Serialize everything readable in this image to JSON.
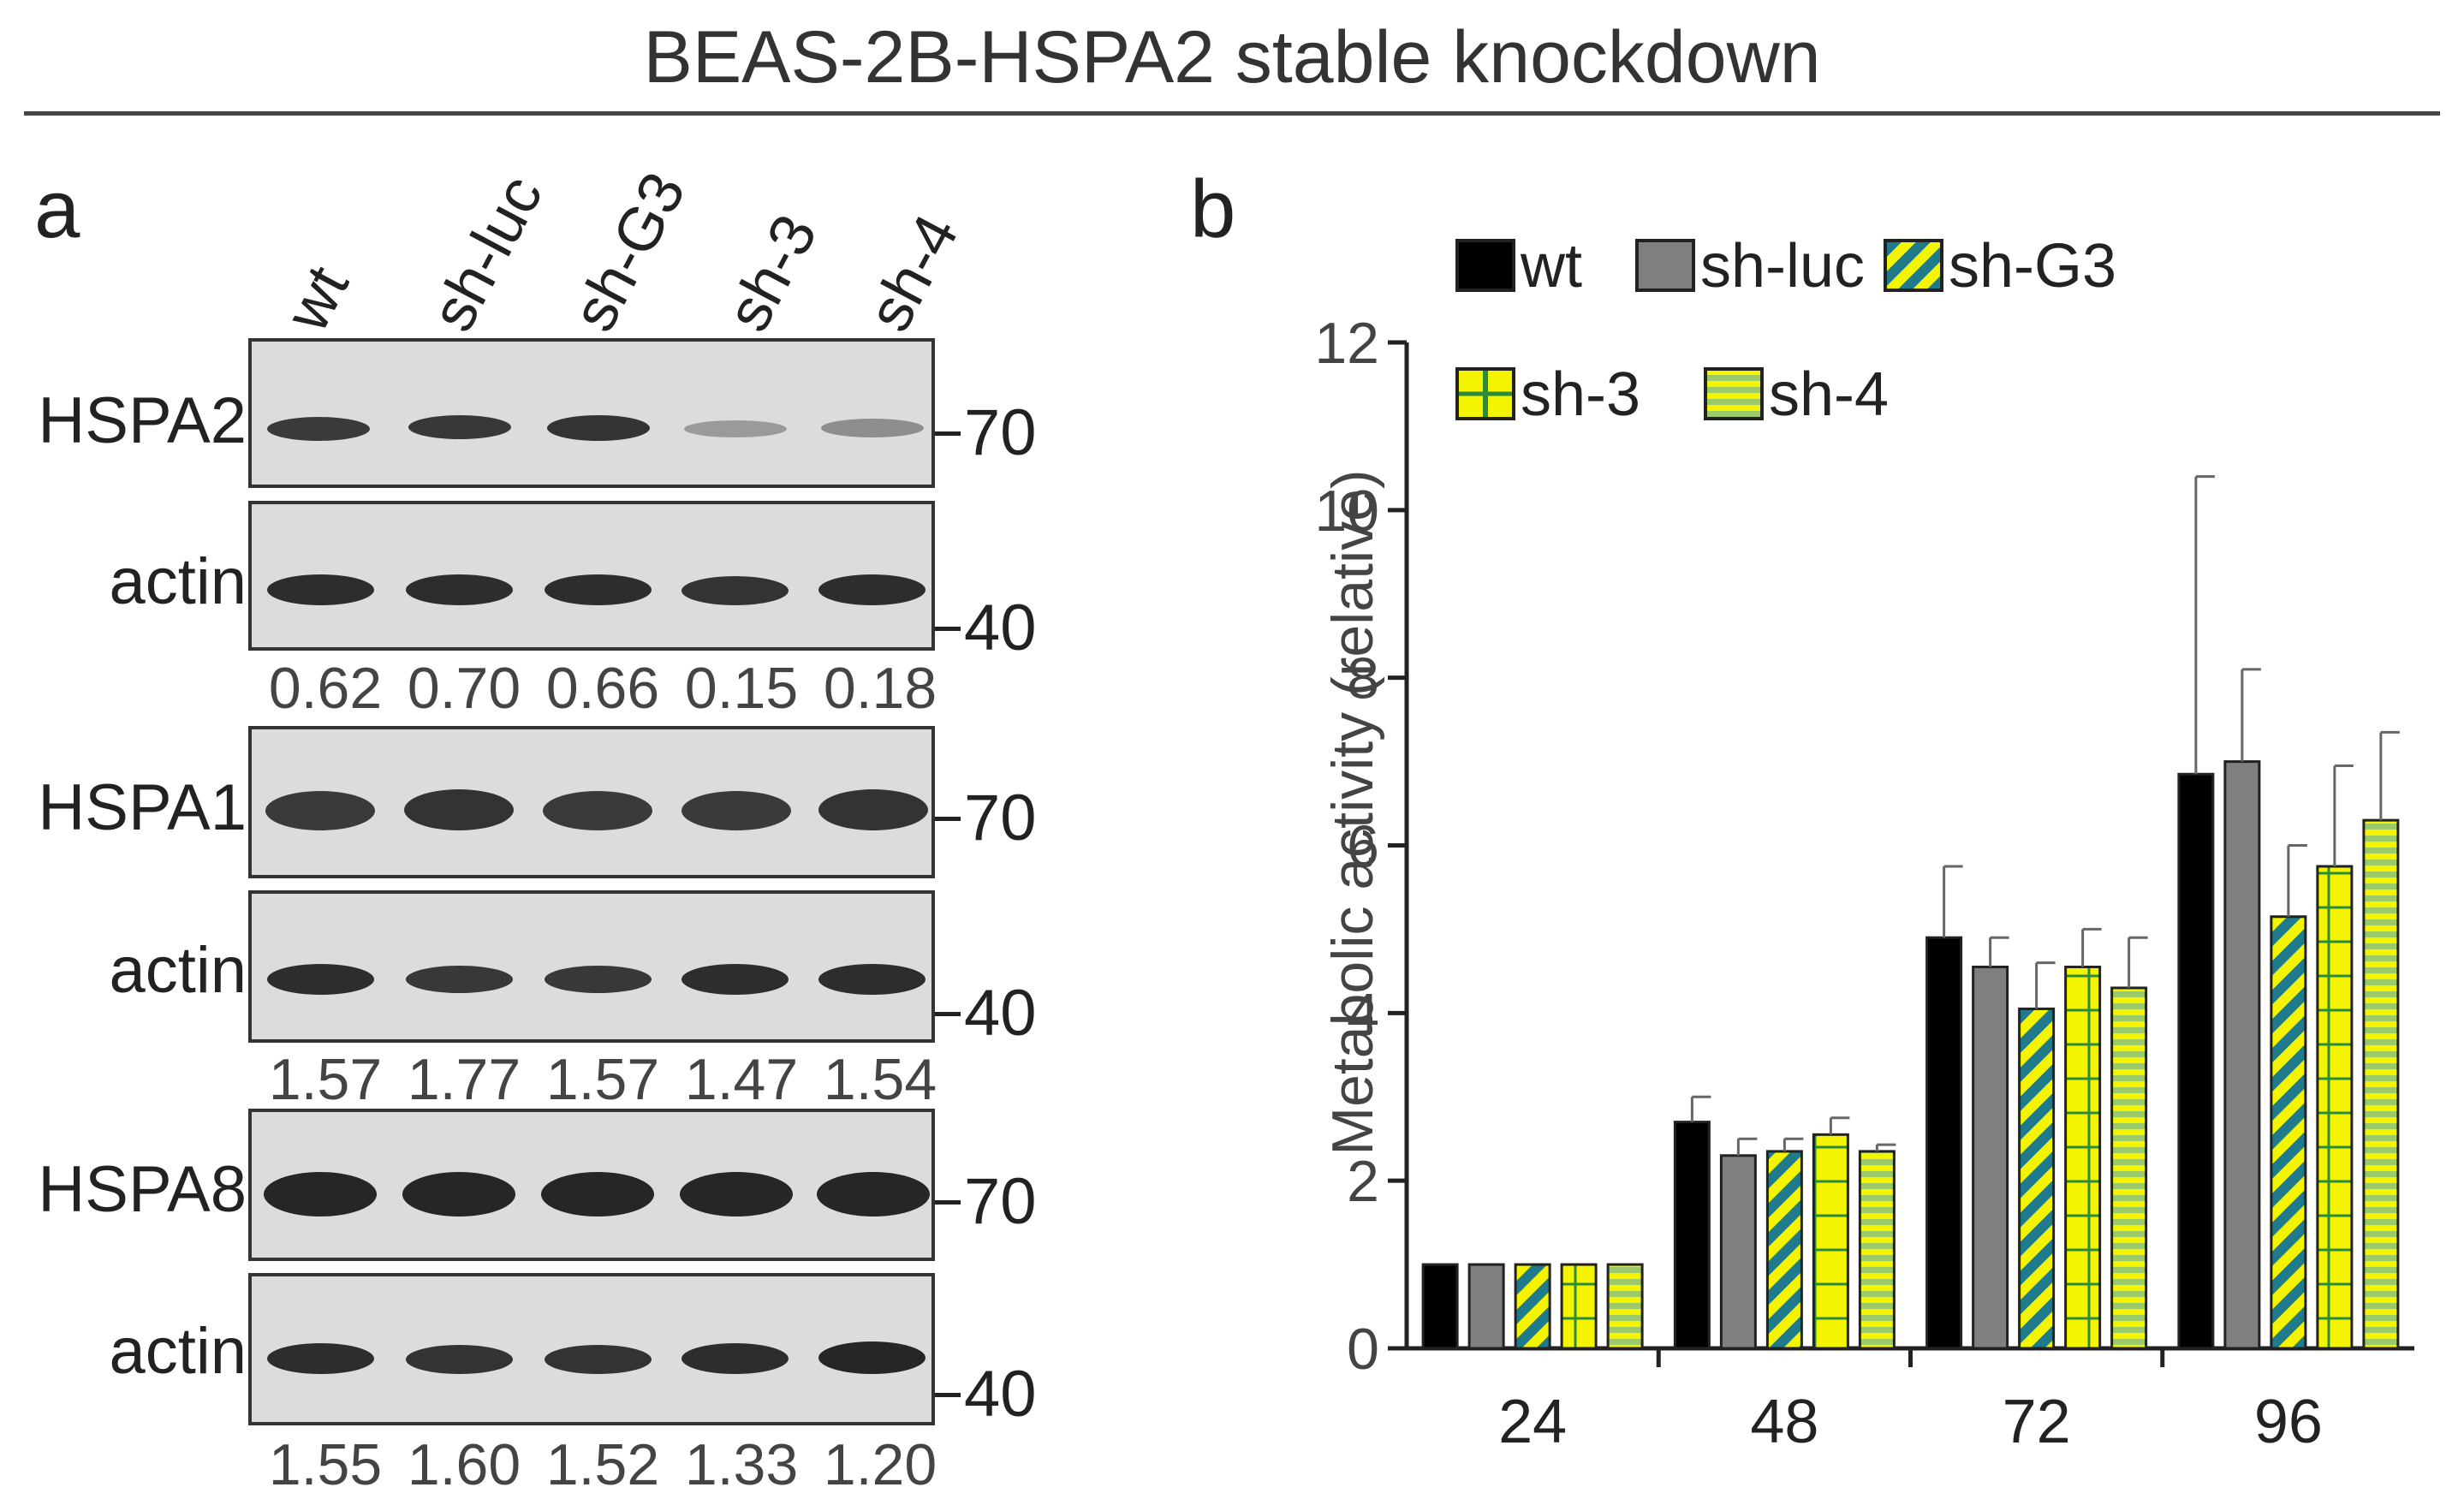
{
  "figure": {
    "title": "BEAS-2B-HSPA2 stable knockdown",
    "panel_a_label": "a",
    "panel_b_label": "b"
  },
  "blot": {
    "lanes": [
      "wt",
      "sh-luc",
      "sh-G3",
      "sh-3",
      "sh-4"
    ],
    "groups": [
      {
        "protein": "HSPA2",
        "loading": "actin",
        "protein_mw": "70",
        "loading_mw": "40",
        "ratios": [
          "0.62",
          "0.70",
          "0.66",
          "0.15",
          "0.18"
        ]
      },
      {
        "protein": "HSPA1",
        "loading": "actin",
        "protein_mw": "70",
        "loading_mw": "40",
        "ratios": [
          "1.57",
          "1.77",
          "1.57",
          "1.47",
          "1.54"
        ]
      },
      {
        "protein": "HSPA8",
        "loading": "actin",
        "protein_mw": "70",
        "loading_mw": "40",
        "ratios": [
          "1.55",
          "1.60",
          "1.52",
          "1.33",
          "1.20"
        ]
      }
    ]
  },
  "chart_data": {
    "type": "bar",
    "title": "",
    "xlabel": "",
    "ylabel": "Metabolic activity (relative)",
    "ylim": [
      0,
      12
    ],
    "yticks": [
      0,
      2,
      4,
      6,
      8,
      10,
      12
    ],
    "categories": [
      "24",
      "48",
      "72",
      "96"
    ],
    "legend_placement": "top",
    "series": [
      {
        "name": "wt",
        "pattern": "solid-black",
        "values": [
          1.0,
          2.7,
          4.9,
          6.85
        ],
        "errors": [
          0.0,
          0.3,
          0.85,
          3.55
        ]
      },
      {
        "name": "sh-luc",
        "pattern": "solid-gray",
        "values": [
          1.0,
          2.3,
          4.55,
          7.0
        ],
        "errors": [
          0.0,
          0.2,
          0.35,
          1.1
        ]
      },
      {
        "name": "sh-G3",
        "pattern": "diagonal-teal",
        "values": [
          1.0,
          2.35,
          4.05,
          5.15
        ],
        "errors": [
          0.0,
          0.15,
          0.55,
          0.85
        ]
      },
      {
        "name": "sh-3",
        "pattern": "grid-yellow",
        "values": [
          1.0,
          2.55,
          4.55,
          5.75
        ],
        "errors": [
          0.0,
          0.2,
          0.45,
          1.2
        ]
      },
      {
        "name": "sh-4",
        "pattern": "hstripe-green",
        "values": [
          1.0,
          2.35,
          4.3,
          6.3
        ],
        "errors": [
          0.0,
          0.08,
          0.6,
          1.05
        ]
      }
    ],
    "colors": {
      "black": "#000000",
      "gray": "#7f7f7f",
      "yellow": "#f4f400",
      "teal": "#1f7a8c",
      "green": "#9cc96a"
    }
  }
}
